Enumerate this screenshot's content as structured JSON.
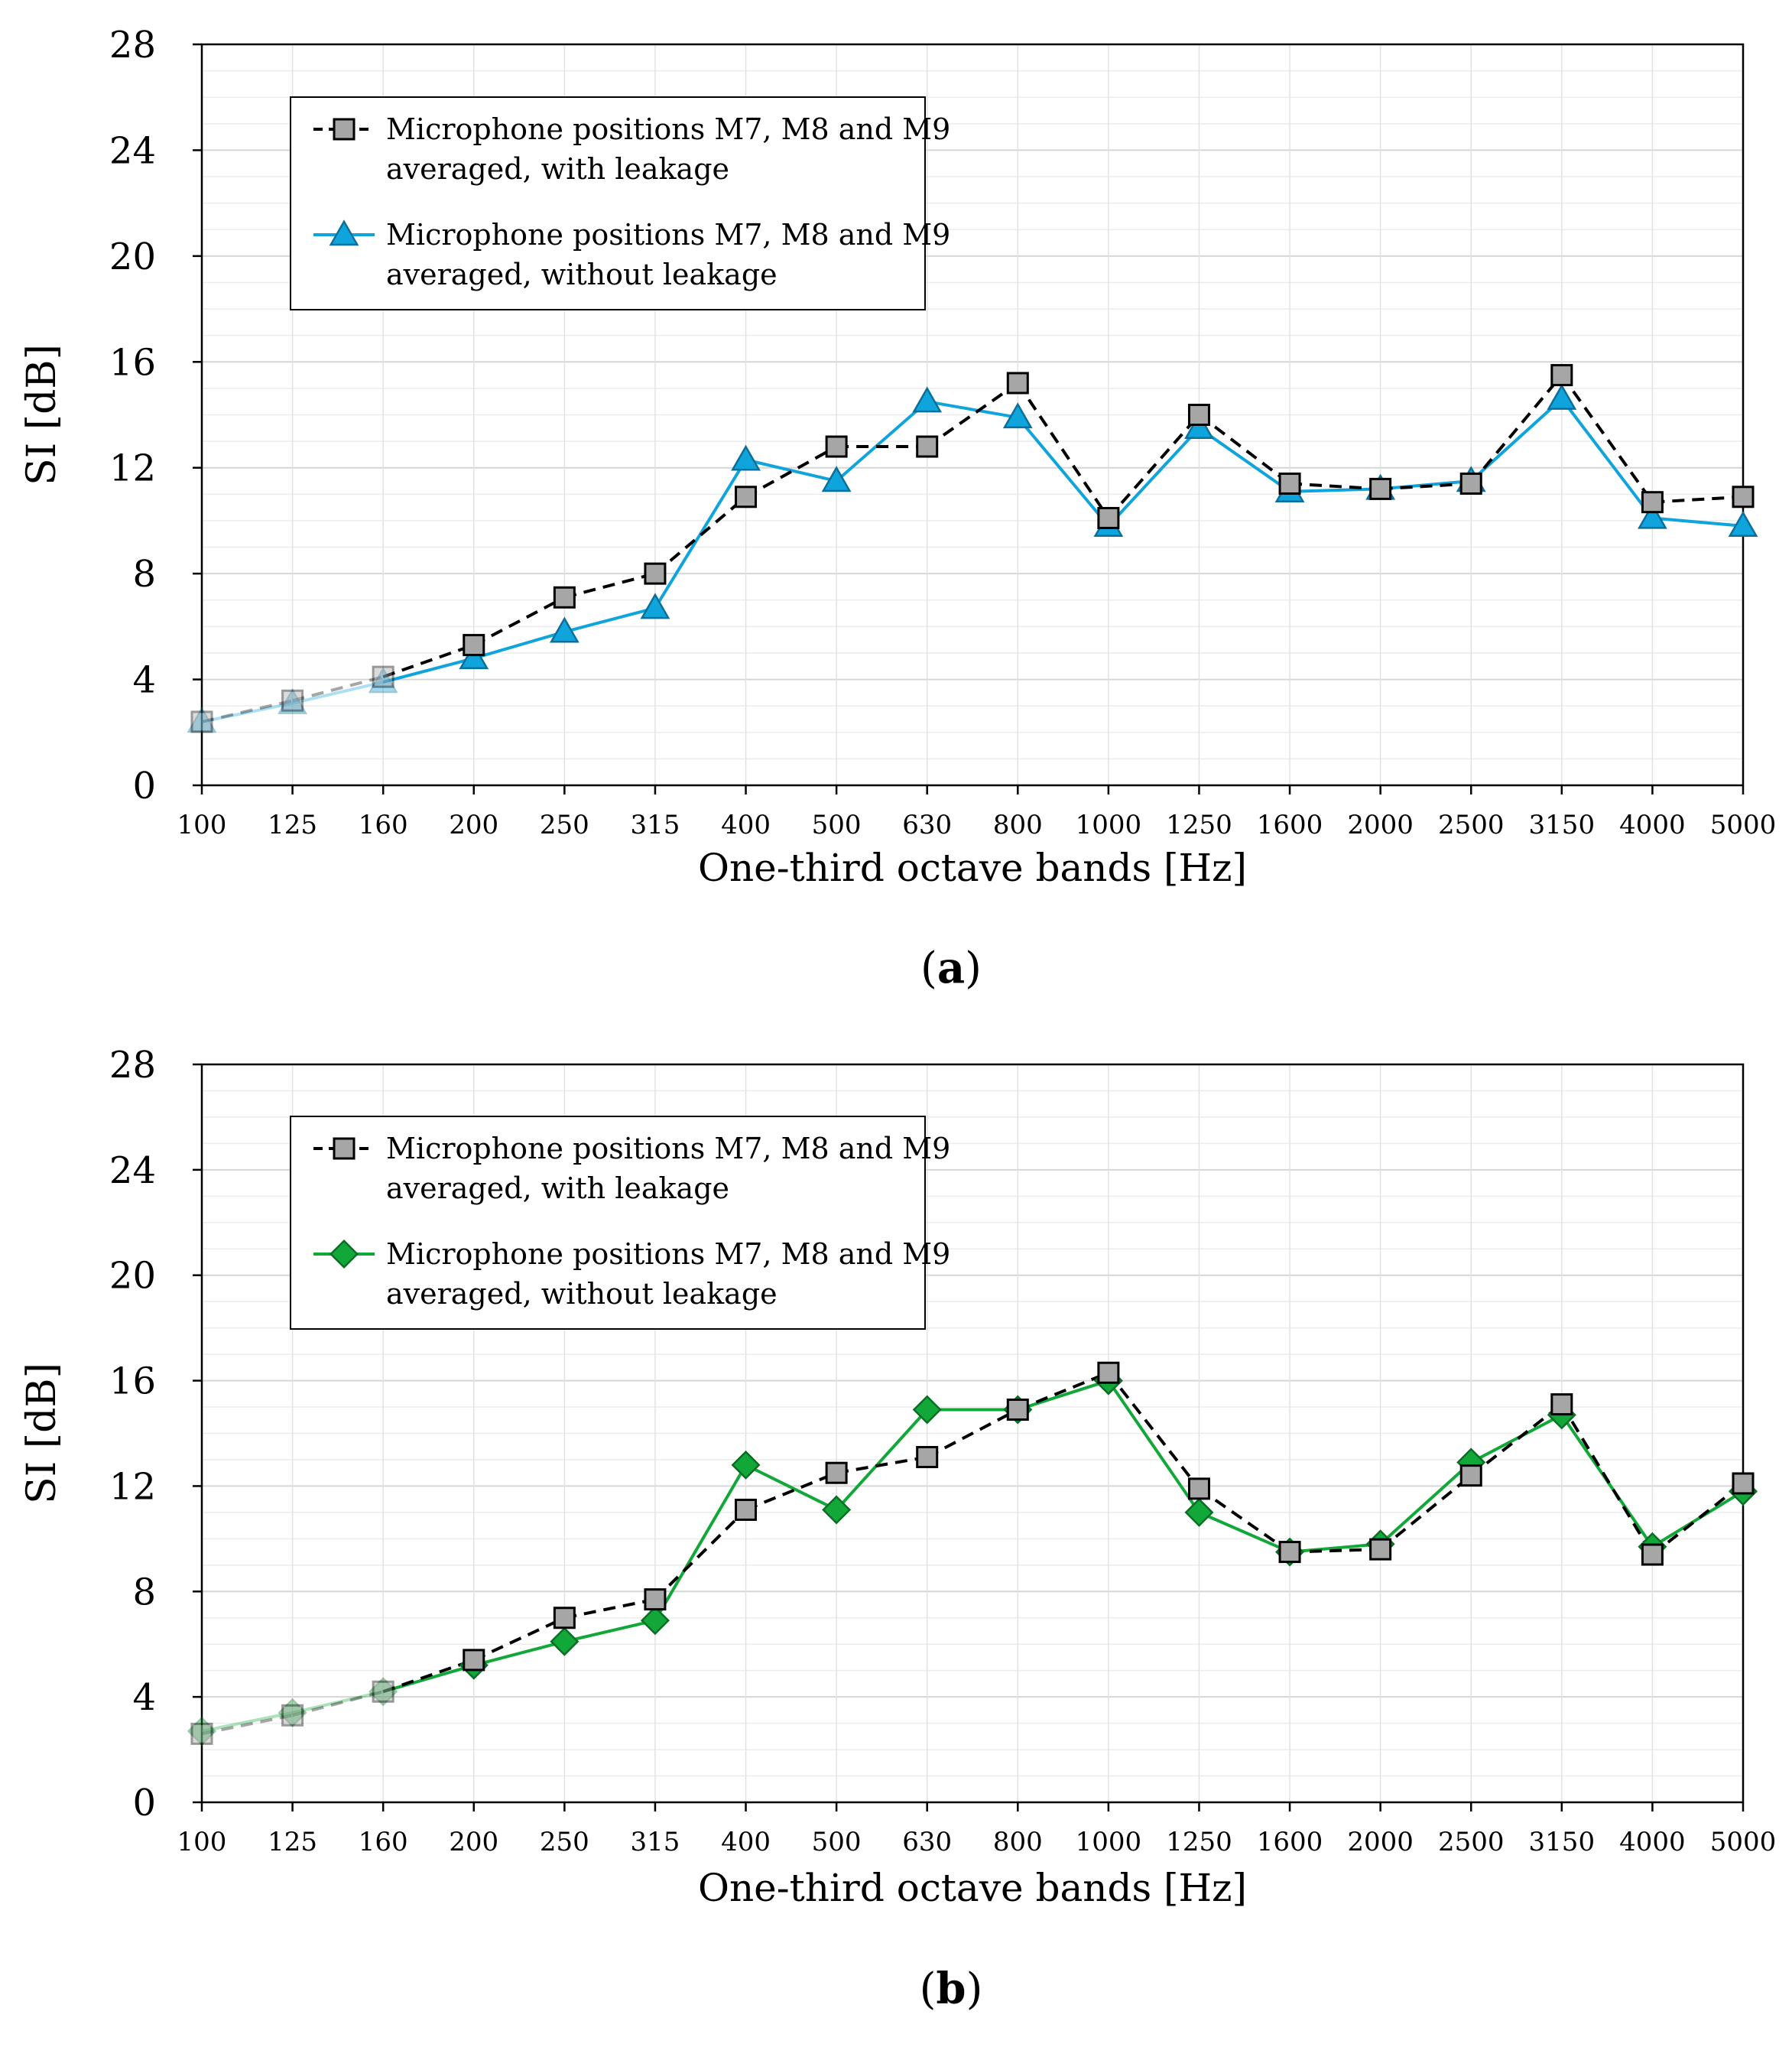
{
  "chart_data": [
    {
      "type": "line",
      "panel_label": "(a)",
      "xlabel": "One-third octave bands [Hz]",
      "ylabel": "SI [dB]",
      "categories": [
        "100",
        "125",
        "160",
        "200",
        "250",
        "315",
        "400",
        "500",
        "630",
        "800",
        "1000",
        "1250",
        "1600",
        "2000",
        "2500",
        "3150",
        "4000",
        "5000"
      ],
      "ylim": [
        0,
        28
      ],
      "yticks": [
        0,
        4,
        8,
        12,
        16,
        20,
        24,
        28
      ],
      "grid": true,
      "legend_position": "top-left",
      "faded_categories": [
        "100",
        "125",
        "160"
      ],
      "series": [
        {
          "name": "Microphone positions M7, M8 and M9 averaged, with leakage",
          "legend_lines": [
            "Microphone positions M7, M8 and M9",
            "averaged, with leakage"
          ],
          "marker": "square",
          "line_style": "dashed",
          "color": "#000000",
          "marker_fill": "#a6a6a6",
          "values": [
            2.4,
            3.2,
            4.1,
            5.3,
            7.1,
            8.0,
            10.9,
            12.8,
            12.8,
            15.2,
            10.1,
            14.0,
            11.4,
            11.2,
            11.4,
            15.5,
            10.7,
            10.9
          ]
        },
        {
          "name": "Microphone positions M7, M8 and M9 averaged, without leakage",
          "legend_lines": [
            "Microphone positions M7, M8 and M9",
            "averaged, without leakage"
          ],
          "marker": "triangle",
          "line_style": "solid",
          "color": "#10a4dc",
          "marker_fill": "#10a4dc",
          "values": [
            2.4,
            3.1,
            3.9,
            4.8,
            5.8,
            6.7,
            12.3,
            11.5,
            14.5,
            13.9,
            9.8,
            13.5,
            11.1,
            11.2,
            11.5,
            14.6,
            10.1,
            9.8
          ]
        }
      ]
    },
    {
      "type": "line",
      "panel_label": "(b)",
      "xlabel": "One-third octave bands [Hz]",
      "ylabel": "SI [dB]",
      "categories": [
        "100",
        "125",
        "160",
        "200",
        "250",
        "315",
        "400",
        "500",
        "630",
        "800",
        "1000",
        "1250",
        "1600",
        "2000",
        "2500",
        "3150",
        "4000",
        "5000"
      ],
      "ylim": [
        0,
        28
      ],
      "yticks": [
        0,
        4,
        8,
        12,
        16,
        20,
        24,
        28
      ],
      "grid": true,
      "legend_position": "top-left",
      "faded_categories": [
        "100",
        "125",
        "160"
      ],
      "series": [
        {
          "name": "Microphone positions M7, M8 and M9 averaged, with leakage",
          "legend_lines": [
            "Microphone positions M7, M8 and M9",
            "averaged, with leakage"
          ],
          "marker": "square",
          "line_style": "dashed",
          "color": "#000000",
          "marker_fill": "#a6a6a6",
          "values": [
            2.6,
            3.3,
            4.2,
            5.4,
            7.0,
            7.7,
            11.1,
            12.5,
            13.1,
            14.9,
            16.3,
            11.9,
            9.5,
            9.6,
            12.4,
            15.1,
            9.4,
            12.1
          ]
        },
        {
          "name": "Microphone positions M7, M8 and M9 averaged, without leakage",
          "legend_lines": [
            "Microphone positions M7, M8 and M9",
            "averaged, without leakage"
          ],
          "marker": "diamond",
          "line_style": "solid",
          "color": "#11a839",
          "marker_fill": "#11a839",
          "values": [
            2.7,
            3.4,
            4.2,
            5.2,
            6.1,
            6.9,
            12.8,
            11.1,
            14.9,
            14.9,
            16.0,
            11.0,
            9.5,
            9.8,
            12.9,
            14.7,
            9.7,
            11.8
          ]
        }
      ]
    }
  ]
}
